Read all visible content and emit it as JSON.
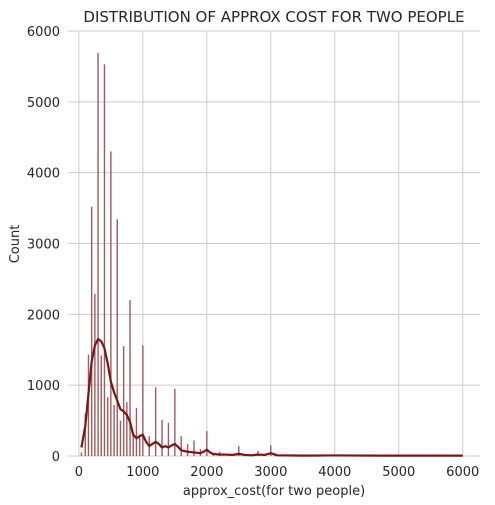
{
  "chart_data": {
    "type": "bar",
    "title": "DISTRIBUTION OF APPROX COST FOR TWO PEOPLE",
    "xlabel": "approx_cost(for two people)",
    "ylabel": "Count",
    "xlim": [
      -170,
      6270
    ],
    "ylim": [
      0,
      6000
    ],
    "xticks": [
      0,
      1000,
      2000,
      3000,
      4000,
      5000,
      6000
    ],
    "yticks": [
      0,
      1000,
      2000,
      3000,
      4000,
      5000,
      6000
    ],
    "grid": true,
    "colors": {
      "bar": "#a05a5e",
      "kde": "#7a1419",
      "grid": "#cccccc"
    },
    "histogram": {
      "x": [
        40,
        100,
        150,
        200,
        250,
        300,
        350,
        400,
        450,
        500,
        550,
        600,
        650,
        700,
        750,
        800,
        850,
        900,
        950,
        1000,
        1100,
        1200,
        1300,
        1400,
        1500,
        1600,
        1700,
        1800,
        1900,
        2000,
        2100,
        2200,
        2500,
        2800,
        3000
      ],
      "values": [
        50,
        600,
        1430,
        3520,
        2290,
        5690,
        1420,
        5530,
        830,
        4300,
        720,
        3340,
        500,
        1550,
        760,
        2200,
        300,
        680,
        300,
        1560,
        280,
        970,
        510,
        470,
        950,
        280,
        170,
        220,
        100,
        350,
        40,
        60,
        140,
        70,
        150
      ]
    },
    "kde": {
      "x": [
        40,
        100,
        150,
        200,
        250,
        300,
        350,
        400,
        450,
        500,
        550,
        600,
        650,
        700,
        750,
        800,
        850,
        900,
        950,
        1000,
        1050,
        1100,
        1150,
        1200,
        1250,
        1300,
        1350,
        1400,
        1450,
        1500,
        1550,
        1600,
        1700,
        1800,
        1900,
        1950,
        2000,
        2050,
        2100,
        2200,
        2300,
        2400,
        2500,
        2600,
        2700,
        2800,
        2900,
        3000,
        3100,
        3500,
        4000,
        5000,
        6000
      ],
      "values": [
        120,
        420,
        880,
        1330,
        1560,
        1650,
        1620,
        1520,
        1310,
        1050,
        900,
        780,
        660,
        630,
        580,
        480,
        300,
        250,
        280,
        300,
        200,
        140,
        170,
        200,
        170,
        120,
        140,
        120,
        150,
        170,
        130,
        80,
        60,
        50,
        40,
        60,
        90,
        50,
        30,
        20,
        20,
        15,
        30,
        15,
        10,
        20,
        15,
        40,
        10,
        5,
        8,
        5,
        5
      ]
    }
  }
}
